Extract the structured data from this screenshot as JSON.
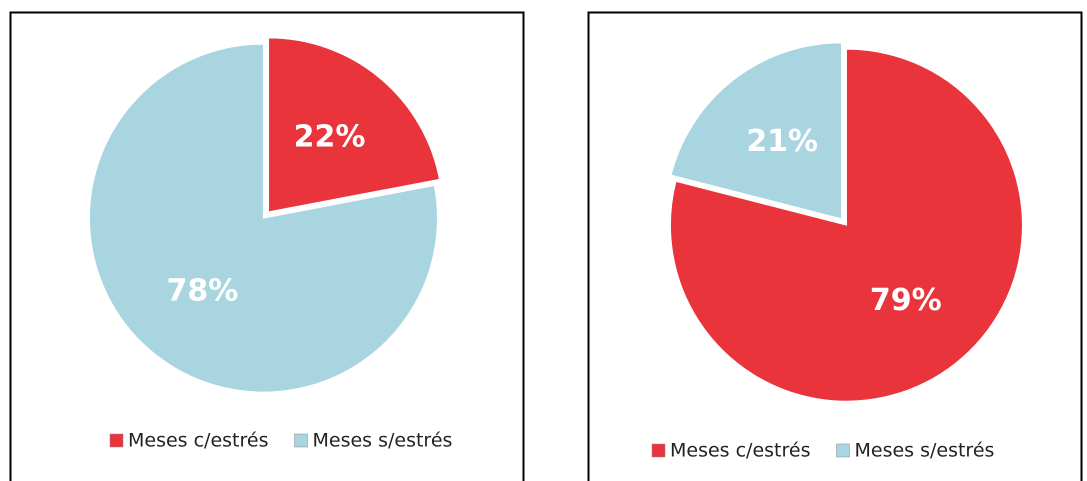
{
  "chart_data": [
    {
      "type": "pie",
      "categories": [
        "Meses c/estrés",
        "Meses s/estrés"
      ],
      "values": [
        22,
        78
      ],
      "value_labels": [
        "22%",
        "78%"
      ],
      "colors": [
        "#e8343a",
        "#a9d5e1"
      ]
    },
    {
      "type": "pie",
      "categories": [
        "Meses c/estrés",
        "Meses s/estrés"
      ],
      "values": [
        79,
        21
      ],
      "value_labels": [
        "79%",
        "21%"
      ],
      "colors": [
        "#e8343a",
        "#a9d5e1"
      ]
    }
  ]
}
